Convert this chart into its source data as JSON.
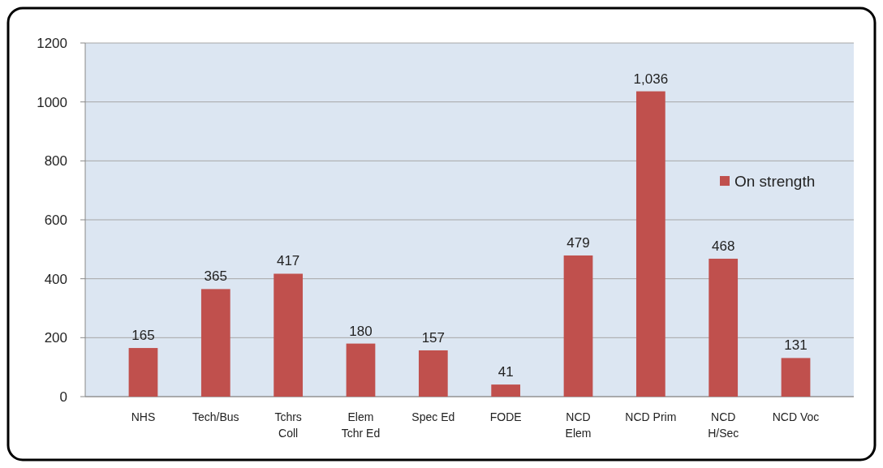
{
  "chart_data": {
    "type": "bar",
    "categories": [
      "NHS",
      "Tech/Bus",
      "Tchrs\nColl",
      "Elem\nTchr Ed",
      "Spec Ed",
      "FODE",
      "NCD\nElem",
      "NCD Prim",
      "NCD\nH/Sec",
      "NCD Voc"
    ],
    "series": [
      {
        "name": "On strength",
        "color": "#c0504d",
        "values": [
          165,
          365,
          417,
          180,
          157,
          41,
          479,
          1036,
          468,
          131
        ],
        "value_labels": [
          "165",
          "365",
          "417",
          "180",
          "157",
          "41",
          "479",
          "1,036",
          "468",
          "131"
        ]
      }
    ],
    "ylim": [
      0,
      1200
    ],
    "yticks": [
      0,
      200,
      400,
      600,
      800,
      1000,
      1200
    ],
    "grid": "y",
    "legend": "right"
  }
}
